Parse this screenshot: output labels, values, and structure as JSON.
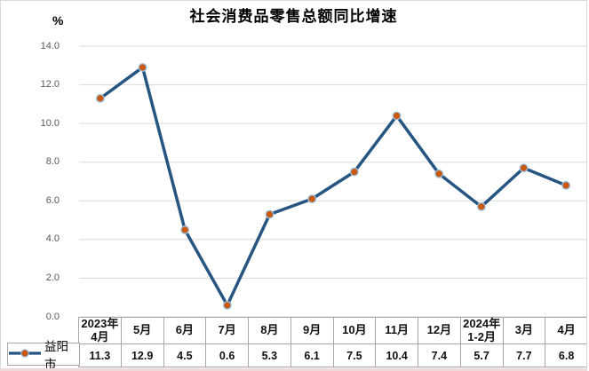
{
  "chart_data": {
    "type": "line",
    "title": "社会消费品零售总额同比增速",
    "y_axis_unit": "%",
    "categories": [
      "2023年\n4月",
      "5月",
      "6月",
      "7月",
      "8月",
      "9月",
      "10月",
      "11月",
      "12月",
      "2024年\n1-2月",
      "3月",
      "4月"
    ],
    "series": [
      {
        "name": "益阳市",
        "values": [
          11.3,
          12.9,
          4.5,
          0.6,
          5.3,
          6.1,
          7.5,
          10.4,
          7.4,
          5.7,
          7.7,
          6.8
        ]
      }
    ],
    "y_ticks": [
      "14.0",
      "12.0",
      "10.0",
      "8.0",
      "6.0",
      "4.0",
      "2.0",
      "0.0"
    ],
    "ylim": [
      0,
      14
    ],
    "grid": "horizontal",
    "legend_position": "bottom-left-table-cell",
    "colors": {
      "line": "#255580",
      "marker": "#C8590F",
      "marker_halo": "#9DC3E6",
      "grid": "#D9D9D9",
      "tick_label": "#595959",
      "table_border": "#A6A6A6",
      "title": "#000000"
    }
  }
}
